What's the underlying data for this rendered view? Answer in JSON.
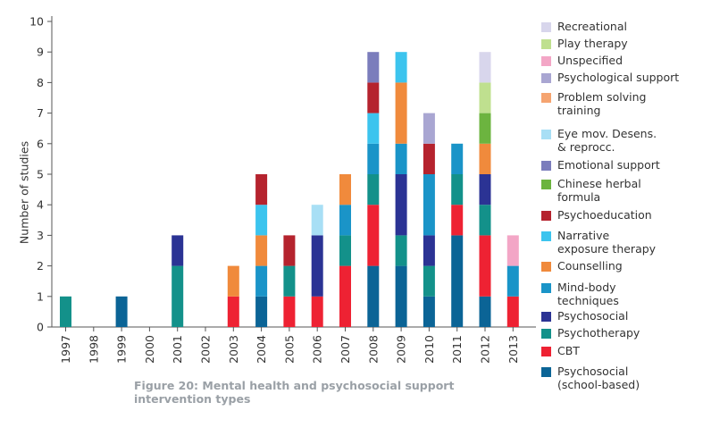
{
  "chart_data": {
    "type": "bar",
    "stacked": true,
    "categories": [
      "1997",
      "1998",
      "1999",
      "2000",
      "2001",
      "2002",
      "2003",
      "2004",
      "2005",
      "2006",
      "2007",
      "2008",
      "2009",
      "2010",
      "2011",
      "2012",
      "2013"
    ],
    "ylabel": "Number of studies",
    "xlabel": "",
    "ylim": [
      0,
      10
    ],
    "yticks": [
      0,
      1,
      2,
      3,
      4,
      5,
      6,
      7,
      8,
      9,
      10
    ],
    "grid": false,
    "legend_position": "right",
    "caption": "Figure 20: Mental health and psychosocial support intervention types",
    "series": [
      {
        "name": "Psychosocial\n(school-based)",
        "color": "#0b6496",
        "values": [
          0,
          0,
          1,
          0,
          0,
          0,
          0,
          1,
          0,
          0,
          0,
          2,
          2,
          1,
          3,
          1,
          0
        ]
      },
      {
        "name": "CBT",
        "color": "#ee2233",
        "values": [
          0,
          0,
          0,
          0,
          0,
          0,
          1,
          0,
          1,
          1,
          2,
          2,
          0,
          0,
          1,
          2,
          1
        ]
      },
      {
        "name": "Psychotherapy",
        "color": "#13918a",
        "values": [
          1,
          0,
          0,
          0,
          2,
          0,
          0,
          0,
          1,
          0,
          1,
          1,
          1,
          1,
          1,
          1,
          0
        ]
      },
      {
        "name": "Psychosocial",
        "color": "#2b3394",
        "values": [
          0,
          0,
          0,
          0,
          1,
          0,
          0,
          0,
          0,
          2,
          0,
          0,
          2,
          1,
          0,
          1,
          0
        ]
      },
      {
        "name": "Mind-body\ntechniques",
        "color": "#1a94c8",
        "values": [
          0,
          0,
          0,
          0,
          0,
          0,
          0,
          1,
          0,
          0,
          1,
          1,
          1,
          2,
          1,
          0,
          1
        ]
      },
      {
        "name": "Counselling",
        "color": "#f08a3c",
        "values": [
          0,
          0,
          0,
          0,
          0,
          0,
          1,
          1,
          0,
          0,
          1,
          0,
          2,
          0,
          0,
          1,
          0
        ]
      },
      {
        "name": "Narrative\nexposure therapy",
        "color": "#3cc4ee",
        "values": [
          0,
          0,
          0,
          0,
          0,
          0,
          0,
          1,
          0,
          0,
          0,
          1,
          1,
          0,
          0,
          0,
          0
        ]
      },
      {
        "name": "Psychoeducation",
        "color": "#b5232e",
        "values": [
          0,
          0,
          0,
          0,
          0,
          0,
          0,
          1,
          1,
          0,
          0,
          1,
          0,
          1,
          0,
          0,
          0
        ]
      },
      {
        "name": "Chinese herbal\nformula",
        "color": "#6cb43f",
        "values": [
          0,
          0,
          0,
          0,
          0,
          0,
          0,
          0,
          0,
          0,
          0,
          0,
          0,
          0,
          0,
          1,
          0
        ]
      },
      {
        "name": "Emotional support",
        "color": "#7b7dbc",
        "values": [
          0,
          0,
          0,
          0,
          0,
          0,
          0,
          0,
          0,
          0,
          0,
          1,
          0,
          0,
          0,
          0,
          0
        ]
      },
      {
        "name": "Eye mov. Desens.\n& reprocc.",
        "color": "#a8dff5",
        "values": [
          0,
          0,
          0,
          0,
          0,
          0,
          0,
          0,
          0,
          1,
          0,
          0,
          0,
          0,
          0,
          0,
          0
        ]
      },
      {
        "name": "Problem solving\ntraining",
        "color": "#f5a470",
        "values": [
          0,
          0,
          0,
          0,
          0,
          0,
          0,
          0,
          0,
          0,
          0,
          0,
          0,
          0,
          0,
          0,
          0
        ]
      },
      {
        "name": "Psychological support",
        "color": "#a9a6d2",
        "values": [
          0,
          0,
          0,
          0,
          0,
          0,
          0,
          0,
          0,
          0,
          0,
          0,
          0,
          1,
          0,
          0,
          0
        ]
      },
      {
        "name": "Unspecified",
        "color": "#f3a6c6",
        "values": [
          0,
          0,
          0,
          0,
          0,
          0,
          0,
          0,
          0,
          0,
          0,
          0,
          0,
          0,
          0,
          0,
          1
        ]
      },
      {
        "name": "Play therapy",
        "color": "#bfe08f",
        "values": [
          0,
          0,
          0,
          0,
          0,
          0,
          0,
          0,
          0,
          0,
          0,
          0,
          0,
          0,
          0,
          1,
          0
        ]
      },
      {
        "name": "Recreational",
        "color": "#d8d6ec",
        "values": [
          0,
          0,
          0,
          0,
          0,
          0,
          0,
          0,
          0,
          0,
          0,
          0,
          0,
          0,
          0,
          1,
          0
        ]
      }
    ]
  }
}
